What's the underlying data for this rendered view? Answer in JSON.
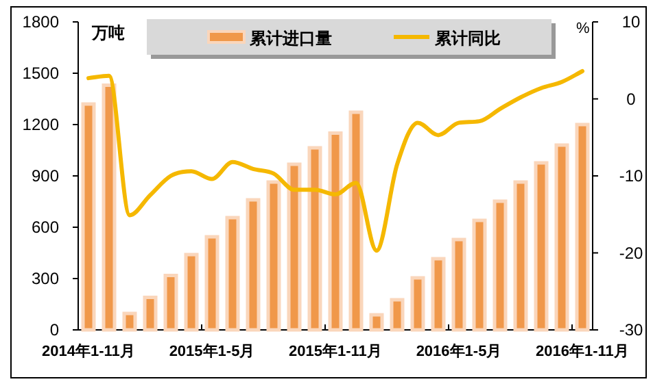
{
  "chart_data": {
    "type": "bar",
    "ylabel": "万吨",
    "y2label": "%",
    "categories": [
      "2014年1-11月",
      null,
      null,
      null,
      null,
      null,
      "2015年1-5月",
      null,
      null,
      null,
      null,
      null,
      "2015年1-11月",
      null,
      null,
      null,
      null,
      null,
      "2016年1-5月",
      null,
      null,
      null,
      null,
      null,
      "2016年1-11月"
    ],
    "series": [
      {
        "name": "累计进口量",
        "color": "#f0984a",
        "values": [
          1320,
          1430,
          96,
          190,
          318,
          440,
          544,
          656,
          760,
          864,
          968,
          1064,
          1150,
          1272,
          88,
          176,
          304,
          416,
          528,
          640,
          752,
          864,
          976,
          1080,
          1200
        ]
      },
      {
        "name": "累计同比",
        "type": "line",
        "axis": "y2",
        "color": "#f5b800",
        "values": [
          2.7,
          3.0,
          -15.1,
          -12.5,
          -10.0,
          -9.4,
          -10.4,
          -8.2,
          -9.1,
          -9.7,
          -11.8,
          -11.8,
          -12.4,
          -10.9,
          -19.7,
          -8.5,
          -3.1,
          -4.7,
          -3.1,
          -2.9,
          -1.3,
          0.2,
          1.4,
          2.2,
          3.6
        ]
      }
    ],
    "ylim": [
      0,
      1800
    ],
    "yticks": [
      0,
      300,
      600,
      900,
      1200,
      1500,
      1800
    ],
    "y2lim": [
      -30,
      10
    ],
    "y2ticks": [
      -30,
      -20,
      -10,
      0,
      10
    ],
    "legend": "top",
    "grid": false,
    "marker": "none",
    "line_style": "solid"
  }
}
